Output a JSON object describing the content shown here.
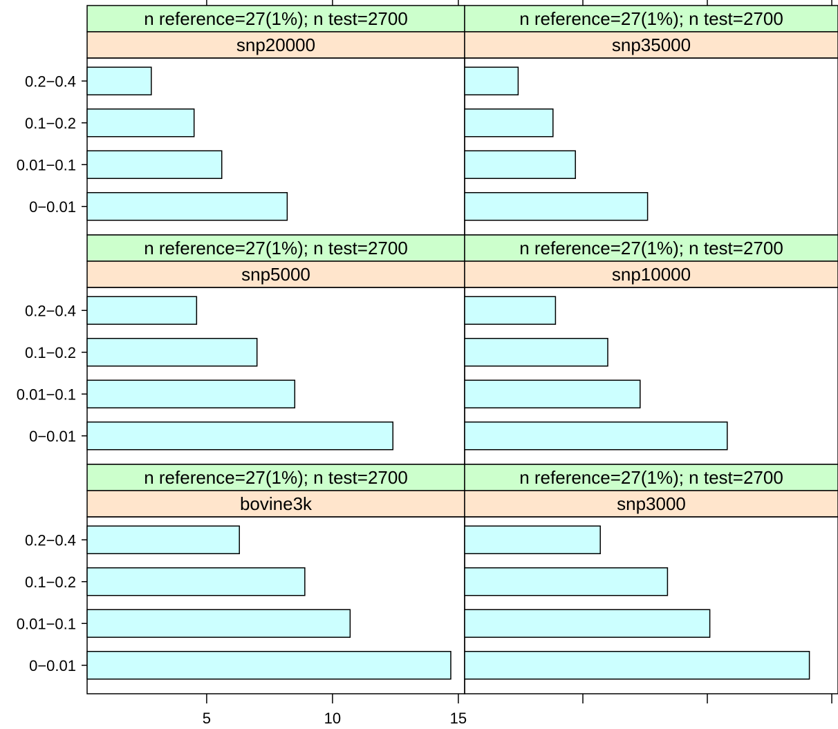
{
  "chart_data": {
    "type": "bar",
    "orientation": "horizontal",
    "layout": "lattice 2 columns x 3 rows",
    "categories": [
      "0−0.01",
      "0.01−0.1",
      "0.1−0.2",
      "0.2−0.4"
    ],
    "xlim": [
      0.25,
      15.25
    ],
    "x_ticks": [
      5,
      10,
      15
    ],
    "x_tick_labels": [
      "5",
      "10",
      "15"
    ],
    "xlabel": "",
    "ylabel": "",
    "grid": false,
    "colors": {
      "bar_fill": "#ccffff",
      "strip_top": "#ccffcc",
      "strip_bottom": "#ffe5cc",
      "border": "#000000"
    },
    "panels": [
      {
        "strip_top": "n reference=27(1%); n test=2700",
        "strip_bottom": "snp20000",
        "values": [
          8.2,
          5.6,
          4.5,
          2.8
        ]
      },
      {
        "strip_top": "n reference=27(1%); n test=2700",
        "strip_bottom": "snp35000",
        "values": [
          7.6,
          4.7,
          3.8,
          2.4
        ]
      },
      {
        "strip_top": "n reference=27(1%); n test=2700",
        "strip_bottom": "snp5000",
        "values": [
          12.4,
          8.5,
          7.0,
          4.6
        ]
      },
      {
        "strip_top": "n reference=27(1%); n test=2700",
        "strip_bottom": "snp10000",
        "values": [
          10.8,
          7.3,
          6.0,
          3.9
        ]
      },
      {
        "strip_top": "n reference=27(1%); n test=2700",
        "strip_bottom": "bovine3k",
        "values": [
          14.7,
          10.7,
          8.9,
          6.3
        ]
      },
      {
        "strip_top": "n reference=27(1%); n test=2700",
        "strip_bottom": "snp3000",
        "values": [
          14.1,
          10.1,
          8.4,
          5.7
        ]
      }
    ]
  }
}
